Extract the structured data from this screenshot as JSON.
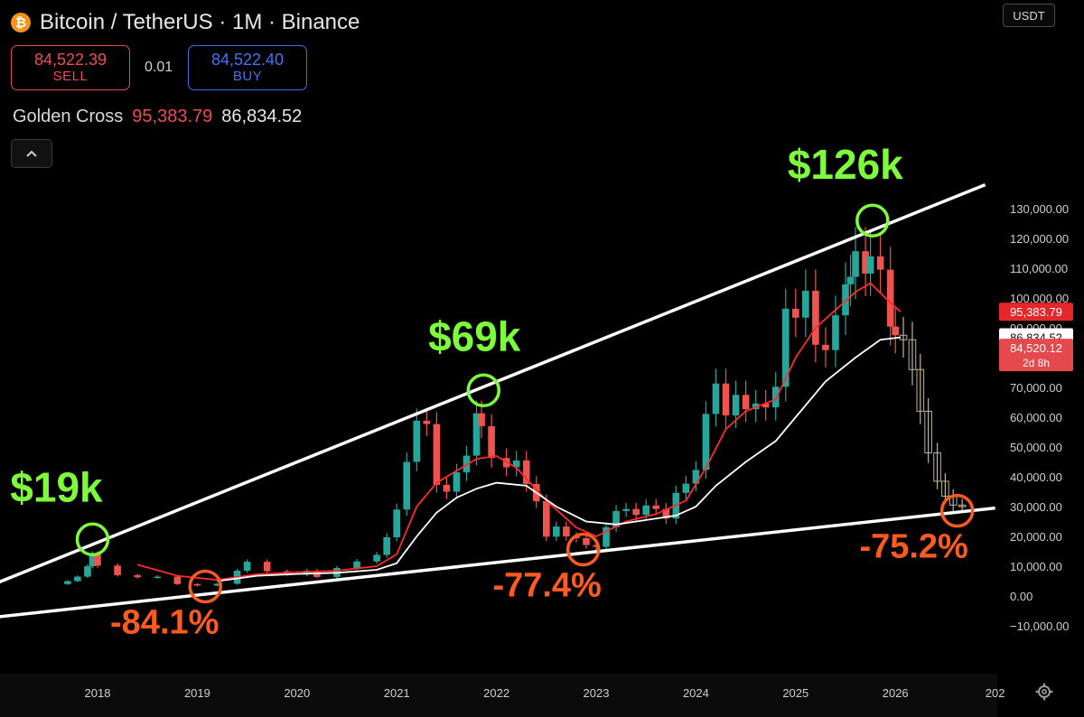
{
  "header": {
    "title": "Bitcoin / TetherUS · 1M · Binance",
    "icon": "bitcoin-icon"
  },
  "trade": {
    "sell_price": "84,522.39",
    "sell_label": "SELL",
    "spread": "0.01",
    "buy_price": "84,522.40",
    "buy_label": "BUY"
  },
  "indicator": {
    "name": "Golden Cross",
    "value1": "95,383.79",
    "value2": "86,834.52"
  },
  "currency": "USDT",
  "price_labels": {
    "ma_fast": "95,383.79",
    "ma_slow": "86,834.52",
    "last": "84,520.12",
    "countdown": "2d 8h"
  },
  "colors": {
    "up": "#26a69a",
    "down": "#ef5350",
    "ma_fast": "#ff2a2a",
    "ma_slow": "#ffffff",
    "peak": "#7cfc3a",
    "trough": "#ff5a1f"
  },
  "chart_data": {
    "type": "candlestick",
    "title": "Bitcoin / TetherUS · 1M · Binance",
    "x_ticks": [
      "2018",
      "2019",
      "2020",
      "2021",
      "2022",
      "2023",
      "2024",
      "2025",
      "2026",
      "202"
    ],
    "y_ticks": [
      "130,000.00",
      "120,000.00",
      "110,000.00",
      "100,000.00",
      "90,000.00",
      "80,000.00",
      "70,000.00",
      "60,000.00",
      "50,000.00",
      "40,000.00",
      "30,000.00",
      "20,000.00",
      "10,000.00",
      "0.00",
      "−10,000.00"
    ],
    "ylim": [
      -15000,
      138000
    ],
    "annotations": [
      {
        "text": "$19k",
        "kind": "peak",
        "x": 2017.95,
        "y": 19000
      },
      {
        "text": "$69k",
        "kind": "peak",
        "x": 2021.87,
        "y": 69000
      },
      {
        "text": "$126k",
        "kind": "peak",
        "x": 2025.77,
        "y": 126000
      },
      {
        "text": "-84.1%",
        "kind": "trough",
        "x": 2019.08,
        "y": 3200
      },
      {
        "text": "-77.4%",
        "kind": "trough",
        "x": 2022.87,
        "y": 15600
      },
      {
        "text": "-75.2%",
        "kind": "trough",
        "x": 2026.62,
        "y": 28600
      }
    ],
    "trendlines": [
      {
        "name": "resistance",
        "from": [
          2017.0,
          4500
        ],
        "to": [
          2026.9,
          138000
        ]
      },
      {
        "name": "support",
        "from": [
          2017.0,
          -7000
        ],
        "to": [
          2027.0,
          29500
        ]
      }
    ],
    "prices": [
      [
        2017.5,
        4000
      ],
      [
        2017.7,
        5000
      ],
      [
        2017.8,
        6500
      ],
      [
        2017.9,
        10000
      ],
      [
        2017.95,
        14000
      ],
      [
        2018.0,
        10200
      ],
      [
        2018.2,
        7000
      ],
      [
        2018.4,
        6300
      ],
      [
        2018.6,
        6500
      ],
      [
        2018.8,
        4000
      ],
      [
        2019.0,
        3500
      ],
      [
        2019.2,
        4100
      ],
      [
        2019.4,
        8500
      ],
      [
        2019.5,
        11500
      ],
      [
        2019.7,
        8300
      ],
      [
        2019.9,
        7200
      ],
      [
        2020.1,
        8500
      ],
      [
        2020.2,
        6400
      ],
      [
        2020.4,
        9400
      ],
      [
        2020.6,
        11600
      ],
      [
        2020.8,
        13800
      ],
      [
        2020.9,
        19700
      ],
      [
        2021.0,
        29000
      ],
      [
        2021.1,
        45000
      ],
      [
        2021.2,
        58800
      ],
      [
        2021.3,
        57700
      ],
      [
        2021.4,
        37300
      ],
      [
        2021.5,
        35000
      ],
      [
        2021.6,
        41500
      ],
      [
        2021.7,
        47100
      ],
      [
        2021.8,
        61300
      ],
      [
        2021.85,
        57000
      ],
      [
        2021.95,
        46300
      ],
      [
        2022.1,
        43200
      ],
      [
        2022.2,
        45500
      ],
      [
        2022.3,
        37600
      ],
      [
        2022.4,
        31800
      ],
      [
        2022.5,
        19900
      ],
      [
        2022.6,
        23300
      ],
      [
        2022.7,
        20000
      ],
      [
        2022.8,
        19400
      ],
      [
        2022.9,
        17100
      ],
      [
        2023.0,
        16500
      ],
      [
        2023.1,
        23100
      ],
      [
        2023.2,
        28500
      ],
      [
        2023.3,
        29200
      ],
      [
        2023.4,
        27200
      ],
      [
        2023.5,
        30400
      ],
      [
        2023.6,
        29200
      ],
      [
        2023.7,
        26000
      ],
      [
        2023.8,
        34600
      ],
      [
        2023.9,
        37700
      ],
      [
        2024.0,
        42300
      ],
      [
        2024.1,
        61100
      ],
      [
        2024.2,
        71300
      ],
      [
        2024.3,
        60600
      ],
      [
        2024.4,
        67500
      ],
      [
        2024.5,
        62700
      ],
      [
        2024.6,
        64600
      ],
      [
        2024.7,
        63300
      ],
      [
        2024.8,
        70200
      ],
      [
        2024.9,
        96400
      ],
      [
        2025.0,
        93400
      ],
      [
        2025.1,
        102400
      ],
      [
        2025.2,
        84300
      ],
      [
        2025.3,
        82500
      ],
      [
        2025.4,
        94200
      ],
      [
        2025.5,
        104600
      ],
      [
        2025.55,
        107100
      ],
      [
        2025.6,
        115700
      ],
      [
        2025.7,
        108200
      ],
      [
        2025.75,
        114000
      ],
      [
        2025.85,
        109500
      ],
      [
        2025.95,
        90400
      ],
      [
        2026.0,
        87500
      ],
      [
        2026.08,
        86000
      ],
      [
        2026.17,
        76000
      ],
      [
        2026.25,
        62000
      ],
      [
        2026.33,
        48000
      ],
      [
        2026.42,
        38500
      ],
      [
        2026.5,
        33500
      ],
      [
        2026.58,
        30500
      ],
      [
        2026.67,
        30000
      ]
    ],
    "series": [
      {
        "name": "ma_fast",
        "values": [
          [
            2018.4,
            10500
          ],
          [
            2018.8,
            6800
          ],
          [
            2019.2,
            5400
          ],
          [
            2019.6,
            7300
          ],
          [
            2020.0,
            8000
          ],
          [
            2020.4,
            8500
          ],
          [
            2020.8,
            10000
          ],
          [
            2021.0,
            14000
          ],
          [
            2021.2,
            30000
          ],
          [
            2021.4,
            38000
          ],
          [
            2021.6,
            42000
          ],
          [
            2021.8,
            46000
          ],
          [
            2022.0,
            47000
          ],
          [
            2022.2,
            43000
          ],
          [
            2022.5,
            32000
          ],
          [
            2022.8,
            23000
          ],
          [
            2023.0,
            20000
          ],
          [
            2023.3,
            25000
          ],
          [
            2023.6,
            27500
          ],
          [
            2023.9,
            32000
          ],
          [
            2024.1,
            43000
          ],
          [
            2024.3,
            56000
          ],
          [
            2024.5,
            62000
          ],
          [
            2024.8,
            66000
          ],
          [
            2025.0,
            80000
          ],
          [
            2025.2,
            90000
          ],
          [
            2025.4,
            96000
          ],
          [
            2025.6,
            102000
          ],
          [
            2025.75,
            105000
          ],
          [
            2025.9,
            100000
          ],
          [
            2026.05,
            95400
          ]
        ]
      },
      {
        "name": "ma_slow",
        "values": [
          [
            2019.2,
            5000
          ],
          [
            2019.6,
            6800
          ],
          [
            2020.0,
            7400
          ],
          [
            2020.4,
            7800
          ],
          [
            2020.8,
            8800
          ],
          [
            2021.0,
            11000
          ],
          [
            2021.2,
            20000
          ],
          [
            2021.4,
            28000
          ],
          [
            2021.6,
            33000
          ],
          [
            2021.8,
            36000
          ],
          [
            2022.0,
            38000
          ],
          [
            2022.3,
            37000
          ],
          [
            2022.6,
            30000
          ],
          [
            2022.9,
            25000
          ],
          [
            2023.2,
            24000
          ],
          [
            2023.5,
            25500
          ],
          [
            2023.8,
            27000
          ],
          [
            2024.0,
            30000
          ],
          [
            2024.2,
            37000
          ],
          [
            2024.5,
            45000
          ],
          [
            2024.8,
            52000
          ],
          [
            2025.0,
            60000
          ],
          [
            2025.3,
            72000
          ],
          [
            2025.6,
            80000
          ],
          [
            2025.85,
            86000
          ],
          [
            2026.05,
            86800
          ]
        ]
      }
    ]
  }
}
